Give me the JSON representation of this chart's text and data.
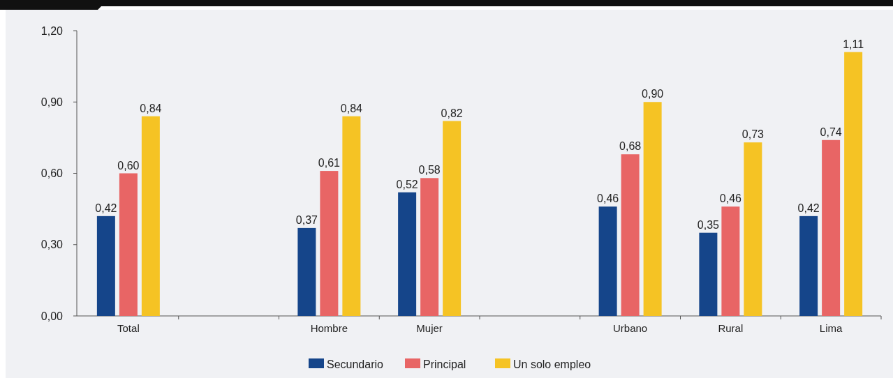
{
  "chart_data": {
    "type": "bar",
    "categories": [
      "Total",
      null,
      "Hombre",
      "Mujer",
      null,
      "Urbano",
      "Rural",
      "Lima"
    ],
    "series": [
      {
        "name": "Secundario",
        "color": "#15458a",
        "values": [
          0.42,
          null,
          0.37,
          0.52,
          null,
          0.46,
          0.35,
          0.42
        ],
        "value_labels": [
          "0,42",
          null,
          "0,37",
          "0,52",
          null,
          "0,46",
          "0,35",
          "0,42"
        ]
      },
      {
        "name": "Principal",
        "color": "#e86565",
        "values": [
          0.6,
          null,
          0.61,
          0.58,
          null,
          0.68,
          0.46,
          0.74
        ],
        "value_labels": [
          "0,60",
          null,
          "0,61",
          "0,58",
          null,
          "0,68",
          "0,46",
          "0,74"
        ]
      },
      {
        "name": "Un solo empleo",
        "color": "#f5c324",
        "values": [
          0.84,
          null,
          0.84,
          0.82,
          null,
          0.9,
          0.73,
          1.11
        ],
        "value_labels": [
          "0,84",
          null,
          "0,84",
          "0,82",
          null,
          "0,90",
          "0,73",
          "1,11"
        ]
      }
    ],
    "ylim": [
      0,
      1.2
    ],
    "yticks": [
      {
        "value": 0,
        "label": "0,00"
      },
      {
        "value": 0.3,
        "label": "0,30"
      },
      {
        "value": 0.6,
        "label": "0,60"
      },
      {
        "value": 0.9,
        "label": "0,90"
      },
      {
        "value": 1.2,
        "label": "1,20"
      }
    ],
    "grid": false,
    "legend": "bottom"
  }
}
